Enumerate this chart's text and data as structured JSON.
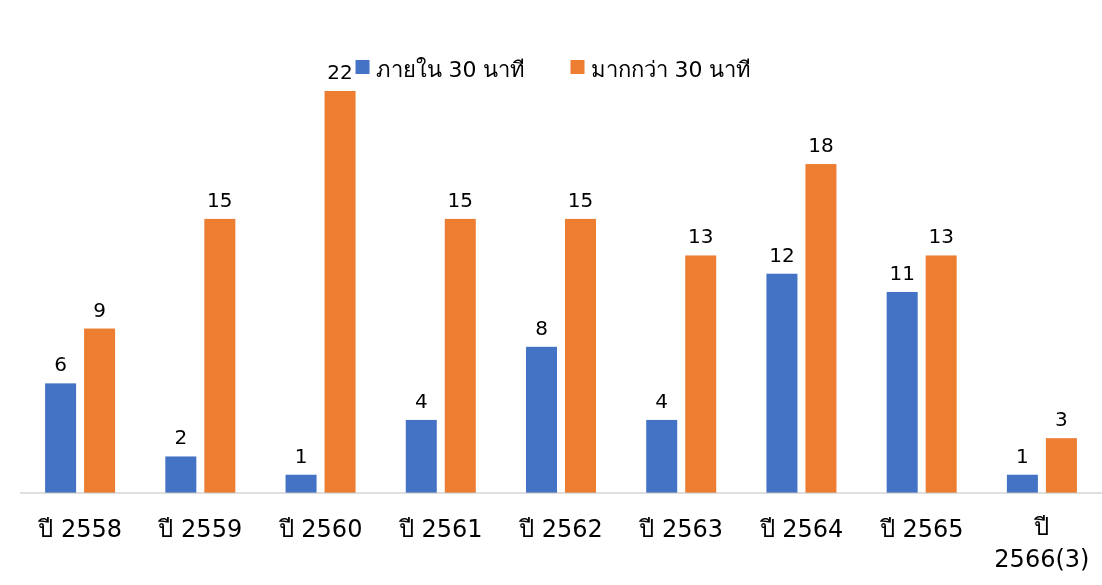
{
  "chart_data": {
    "type": "bar",
    "categories": [
      "ปี 2558",
      "ปี 2559",
      "ปี 2560",
      "ปี 2561",
      "ปี 2562",
      "ปี 2563",
      "ปี 2564",
      "ปี 2565",
      "ปี 2566(3)"
    ],
    "series": [
      {
        "name": "ภายใน 30 นาที",
        "color": "#4472c4",
        "values": [
          6,
          2,
          1,
          4,
          8,
          4,
          12,
          11,
          1
        ]
      },
      {
        "name": "มากกว่า 30 นาที",
        "color": "#ed7d31",
        "values": [
          9,
          15,
          22,
          15,
          15,
          13,
          18,
          13,
          3
        ]
      }
    ],
    "data_labels": true,
    "legend": "top"
  }
}
